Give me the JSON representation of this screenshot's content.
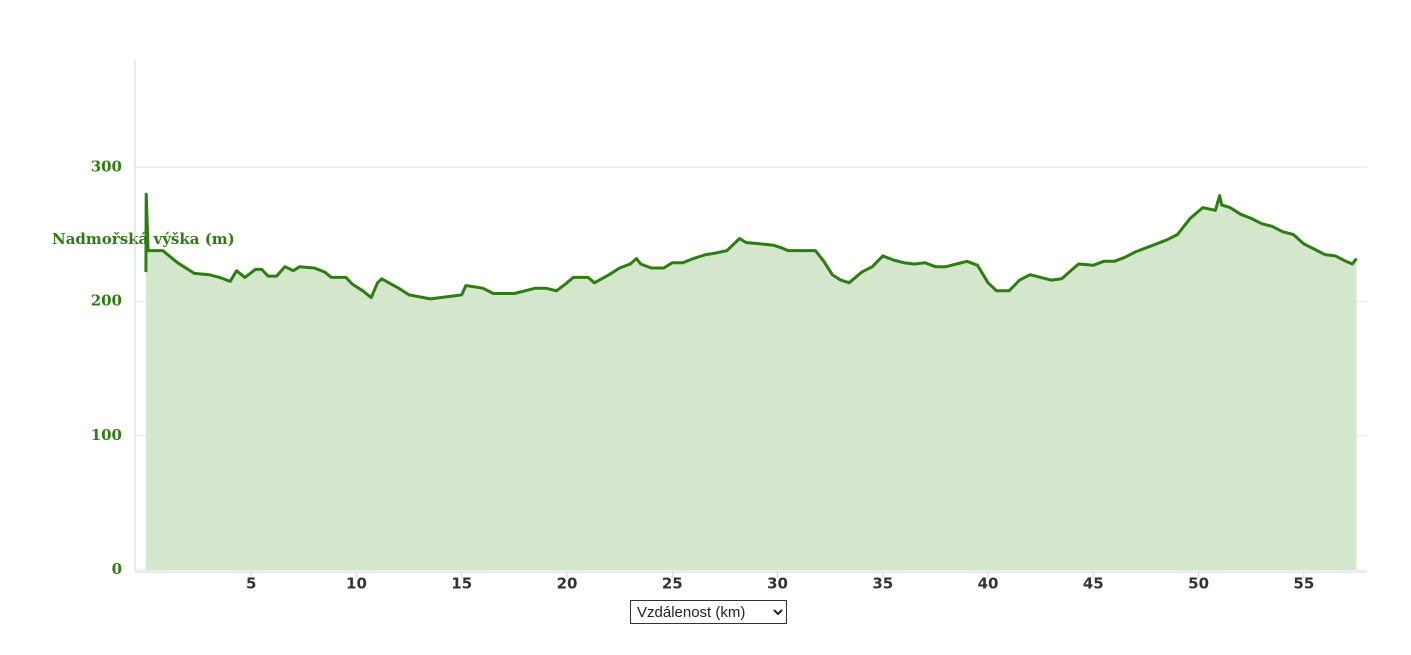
{
  "chart_data": {
    "type": "area",
    "ylabel": "Nadmořská výška (m)",
    "x_selector": "Vzdálenost (km)",
    "x": [
      0,
      0.01,
      0.1,
      0.8,
      1.5,
      2.3,
      3,
      3.5,
      4,
      4.3,
      4.7,
      5.2,
      5.5,
      5.8,
      6.2,
      6.6,
      7,
      7.3,
      8,
      8.5,
      8.8,
      9.5,
      9.8,
      10.3,
      10.7,
      11,
      11.2,
      12,
      12.5,
      13.5,
      14.5,
      15,
      15.2,
      16,
      16.5,
      17.5,
      18,
      18.5,
      19,
      19.5,
      20,
      20.3,
      21,
      21.3,
      22,
      22.5,
      23,
      23.3,
      23.5,
      24,
      24.6,
      25,
      25.5,
      26,
      26.6,
      27,
      27.6,
      28.2,
      28.5,
      29.2,
      29.8,
      30.2,
      30.5,
      31.8,
      32.2,
      32.6,
      33,
      33.4,
      34,
      34.5,
      35,
      35.5,
      36,
      36.5,
      37,
      37.5,
      38,
      38.5,
      39,
      39.5,
      40,
      40.4,
      41,
      41.5,
      42,
      42.5,
      43,
      43.5,
      44,
      44.3,
      45,
      45.5,
      46,
      46.5,
      47,
      48,
      48.5,
      49,
      49.6,
      50.2,
      50.8,
      51,
      51.1,
      51.5,
      52,
      52.5,
      53,
      53.5,
      54,
      54.5,
      55,
      55.5,
      56,
      56.5,
      57,
      57.3,
      57.5
    ],
    "values": [
      222,
      280,
      238,
      238,
      229,
      221,
      220,
      218,
      215,
      223,
      218,
      224,
      224,
      219,
      219,
      226,
      223,
      226,
      225,
      222,
      218,
      218,
      213,
      208,
      203,
      214,
      217,
      210,
      205,
      202,
      204,
      205,
      212,
      210,
      206,
      206,
      208,
      210,
      210,
      208,
      214,
      218,
      218,
      214,
      220,
      225,
      228,
      232,
      228,
      225,
      225,
      229,
      229,
      232,
      235,
      236,
      238,
      247,
      244,
      243,
      242,
      240,
      238,
      238,
      230,
      220,
      216,
      214,
      222,
      226,
      234,
      231,
      229,
      228,
      229,
      226,
      226,
      228,
      230,
      227,
      214,
      208,
      208,
      216,
      220,
      218,
      216,
      217,
      224,
      228,
      227,
      230,
      230,
      233,
      237,
      243,
      246,
      250,
      262,
      270,
      268,
      279,
      272,
      270,
      265,
      262,
      258,
      256,
      252,
      250,
      243,
      239,
      235,
      234,
      230,
      228,
      232
    ],
    "color": "#2e7d12",
    "fill_color": "#d4e6cb",
    "ylabel_color": "#2e7d12",
    "xlim": [
      -0.52,
      58
    ],
    "ylim": [
      0,
      380
    ],
    "xticks": [
      5,
      10,
      15,
      20,
      25,
      30,
      35,
      40,
      45,
      50,
      55
    ],
    "yticks": [
      0,
      100,
      200,
      300
    ],
    "grid": true
  }
}
